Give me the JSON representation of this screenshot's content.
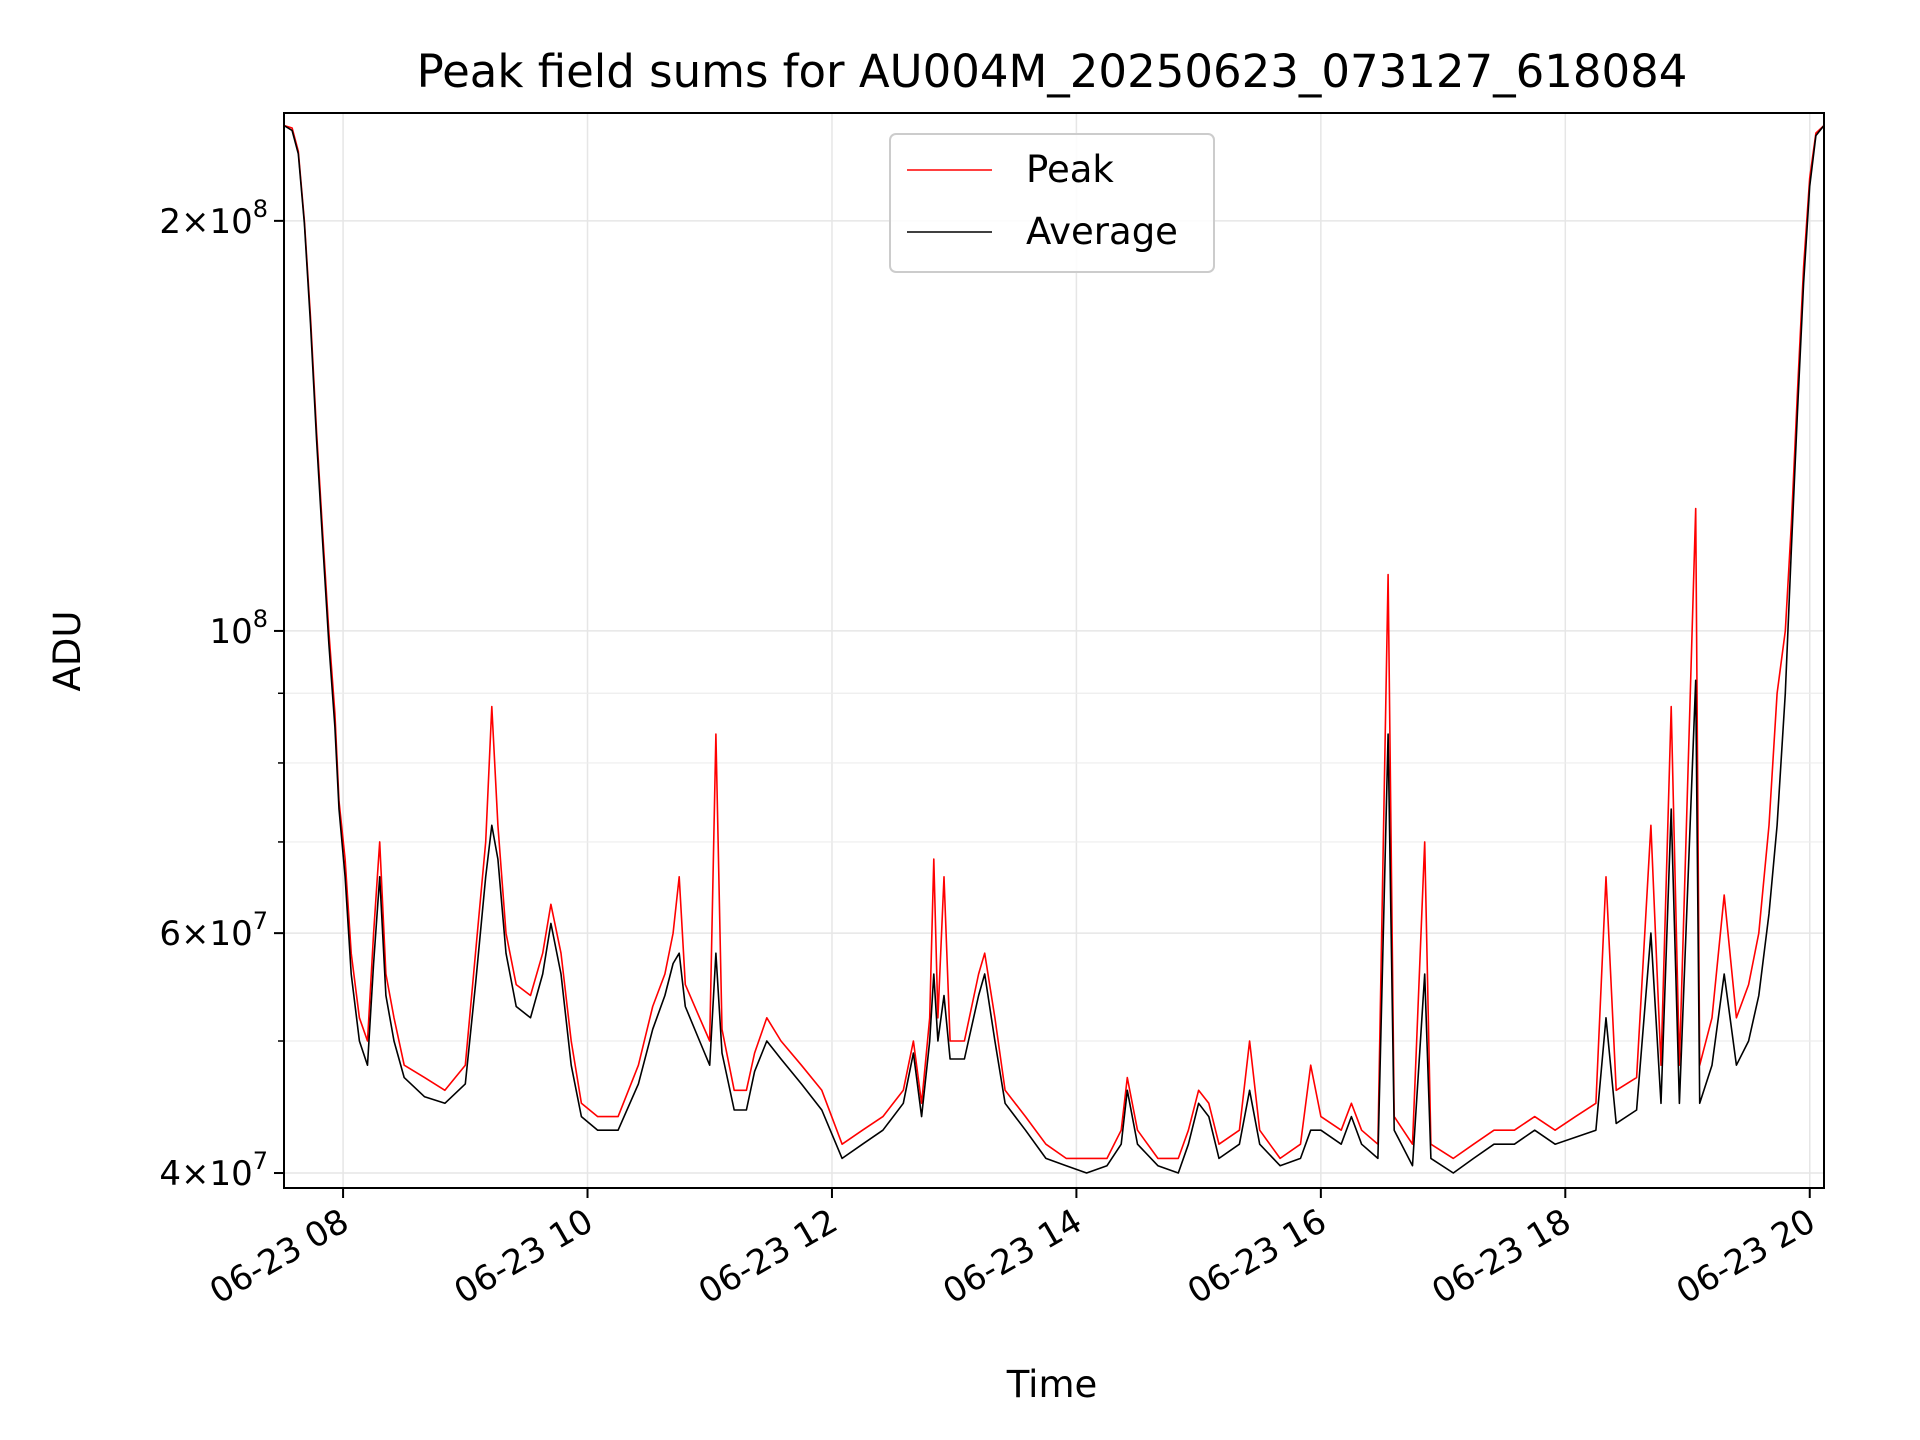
{
  "chart_data": {
    "type": "line",
    "title": "Peak field sums for AU004M_20250623_073127_618084",
    "xlabel": "Time",
    "ylabel": "ADU",
    "xlim": [
      "06-23 07:31",
      "06-23 20:07"
    ],
    "ylim": [
      39000000,
      240000000
    ],
    "yscale": "log",
    "grid": true,
    "legend_position": "upper center",
    "x_ticks": [
      "06-23 08",
      "06-23 10",
      "06-23 12",
      "06-23 14",
      "06-23 16",
      "06-23 18",
      "06-23 20"
    ],
    "y_tick_labels": [
      {
        "value": 40000000,
        "mantissa": "4",
        "base": "10",
        "exp": "7"
      },
      {
        "value": 60000000,
        "mantissa": "6",
        "base": "10",
        "exp": "7"
      },
      {
        "value": 100000000,
        "mantissa": "",
        "base": "10",
        "exp": "8"
      },
      {
        "value": 200000000,
        "mantissa": "2",
        "base": "10",
        "exp": "8"
      }
    ],
    "y_minor_ticks": [
      50000000,
      70000000,
      80000000,
      90000000
    ],
    "series": [
      {
        "name": "Peak",
        "color": "#ff0000",
        "points": [
          [
            "07:31",
            235000000
          ],
          [
            "07:35",
            234000000
          ],
          [
            "07:38",
            225000000
          ],
          [
            "07:41",
            200000000
          ],
          [
            "07:44",
            170000000
          ],
          [
            "07:47",
            140000000
          ],
          [
            "07:50",
            118000000
          ],
          [
            "07:53",
            100000000
          ],
          [
            "07:56",
            87000000
          ],
          [
            "07:58",
            75000000
          ],
          [
            "08:01",
            68000000
          ],
          [
            "08:04",
            58000000
          ],
          [
            "08:08",
            52000000
          ],
          [
            "08:12",
            50000000
          ],
          [
            "08:15",
            60000000
          ],
          [
            "08:18",
            70000000
          ],
          [
            "08:21",
            56000000
          ],
          [
            "08:25",
            52000000
          ],
          [
            "08:30",
            48000000
          ],
          [
            "08:40",
            47000000
          ],
          [
            "08:50",
            46000000
          ],
          [
            "09:00",
            48000000
          ],
          [
            "09:05",
            58000000
          ],
          [
            "09:10",
            70000000
          ],
          [
            "09:13",
            88000000
          ],
          [
            "09:16",
            72000000
          ],
          [
            "09:20",
            60000000
          ],
          [
            "09:25",
            55000000
          ],
          [
            "09:32",
            54000000
          ],
          [
            "09:38",
            58000000
          ],
          [
            "09:42",
            63000000
          ],
          [
            "09:47",
            58000000
          ],
          [
            "09:52",
            50000000
          ],
          [
            "09:57",
            45000000
          ],
          [
            "10:05",
            44000000
          ],
          [
            "10:15",
            44000000
          ],
          [
            "10:25",
            48000000
          ],
          [
            "10:32",
            53000000
          ],
          [
            "10:38",
            56000000
          ],
          [
            "10:42",
            60000000
          ],
          [
            "10:45",
            66000000
          ],
          [
            "10:48",
            55000000
          ],
          [
            "10:55",
            52000000
          ],
          [
            "11:00",
            50000000
          ],
          [
            "11:03",
            84000000
          ],
          [
            "11:06",
            51000000
          ],
          [
            "11:12",
            46000000
          ],
          [
            "11:18",
            46000000
          ],
          [
            "11:22",
            49000000
          ],
          [
            "11:28",
            52000000
          ],
          [
            "11:35",
            50000000
          ],
          [
            "11:45",
            48000000
          ],
          [
            "11:55",
            46000000
          ],
          [
            "12:05",
            42000000
          ],
          [
            "12:15",
            43000000
          ],
          [
            "12:25",
            44000000
          ],
          [
            "12:35",
            46000000
          ],
          [
            "12:40",
            50000000
          ],
          [
            "12:44",
            45000000
          ],
          [
            "12:48",
            52000000
          ],
          [
            "12:50",
            68000000
          ],
          [
            "12:52",
            52000000
          ],
          [
            "12:55",
            66000000
          ],
          [
            "12:58",
            50000000
          ],
          [
            "13:05",
            50000000
          ],
          [
            "13:12",
            56000000
          ],
          [
            "13:15",
            58000000
          ],
          [
            "13:20",
            52000000
          ],
          [
            "13:25",
            46000000
          ],
          [
            "13:35",
            44000000
          ],
          [
            "13:45",
            42000000
          ],
          [
            "13:55",
            41000000
          ],
          [
            "14:05",
            41000000
          ],
          [
            "14:15",
            41000000
          ],
          [
            "14:22",
            43000000
          ],
          [
            "14:25",
            47000000
          ],
          [
            "14:30",
            43000000
          ],
          [
            "14:40",
            41000000
          ],
          [
            "14:50",
            41000000
          ],
          [
            "14:55",
            43000000
          ],
          [
            "15:00",
            46000000
          ],
          [
            "15:05",
            45000000
          ],
          [
            "15:10",
            42000000
          ],
          [
            "15:20",
            43000000
          ],
          [
            "15:25",
            50000000
          ],
          [
            "15:30",
            43000000
          ],
          [
            "15:40",
            41000000
          ],
          [
            "15:50",
            42000000
          ],
          [
            "15:55",
            48000000
          ],
          [
            "16:00",
            44000000
          ],
          [
            "16:10",
            43000000
          ],
          [
            "16:15",
            45000000
          ],
          [
            "16:20",
            43000000
          ],
          [
            "16:28",
            42000000
          ],
          [
            "16:33",
            110000000
          ],
          [
            "16:36",
            44000000
          ],
          [
            "16:45",
            42000000
          ],
          [
            "16:51",
            70000000
          ],
          [
            "16:54",
            42000000
          ],
          [
            "17:05",
            41000000
          ],
          [
            "17:15",
            42000000
          ],
          [
            "17:25",
            43000000
          ],
          [
            "17:35",
            43000000
          ],
          [
            "17:45",
            44000000
          ],
          [
            "17:55",
            43000000
          ],
          [
            "18:05",
            44000000
          ],
          [
            "18:15",
            45000000
          ],
          [
            "18:20",
            66000000
          ],
          [
            "18:25",
            46000000
          ],
          [
            "18:35",
            47000000
          ],
          [
            "18:42",
            72000000
          ],
          [
            "18:47",
            48000000
          ],
          [
            "18:52",
            88000000
          ],
          [
            "18:56",
            48000000
          ],
          [
            "19:04",
            123000000
          ],
          [
            "19:06",
            48000000
          ],
          [
            "19:12",
            52000000
          ],
          [
            "19:18",
            64000000
          ],
          [
            "19:24",
            52000000
          ],
          [
            "19:30",
            55000000
          ],
          [
            "19:35",
            60000000
          ],
          [
            "19:40",
            72000000
          ],
          [
            "19:44",
            90000000
          ],
          [
            "19:48",
            100000000
          ],
          [
            "19:51",
            120000000
          ],
          [
            "19:54",
            150000000
          ],
          [
            "19:57",
            185000000
          ],
          [
            "20:00",
            215000000
          ],
          [
            "20:03",
            232000000
          ],
          [
            "20:07",
            235000000
          ]
        ]
      },
      {
        "name": "Average",
        "color": "#000000",
        "points": [
          [
            "07:31",
            235000000
          ],
          [
            "07:35",
            233000000
          ],
          [
            "07:38",
            224000000
          ],
          [
            "07:41",
            199000000
          ],
          [
            "07:44",
            168000000
          ],
          [
            "07:47",
            138000000
          ],
          [
            "07:50",
            116000000
          ],
          [
            "07:53",
            98000000
          ],
          [
            "07:56",
            85000000
          ],
          [
            "07:58",
            74000000
          ],
          [
            "08:01",
            66000000
          ],
          [
            "08:04",
            56000000
          ],
          [
            "08:08",
            50000000
          ],
          [
            "08:12",
            48000000
          ],
          [
            "08:15",
            57000000
          ],
          [
            "08:18",
            66000000
          ],
          [
            "08:21",
            54000000
          ],
          [
            "08:25",
            50000000
          ],
          [
            "08:30",
            47000000
          ],
          [
            "08:40",
            45500000
          ],
          [
            "08:50",
            45000000
          ],
          [
            "09:00",
            46500000
          ],
          [
            "09:05",
            55000000
          ],
          [
            "09:10",
            66000000
          ],
          [
            "09:13",
            72000000
          ],
          [
            "09:16",
            68000000
          ],
          [
            "09:20",
            58000000
          ],
          [
            "09:25",
            53000000
          ],
          [
            "09:32",
            52000000
          ],
          [
            "09:38",
            56000000
          ],
          [
            "09:42",
            61000000
          ],
          [
            "09:47",
            56000000
          ],
          [
            "09:52",
            48000000
          ],
          [
            "09:57",
            44000000
          ],
          [
            "10:05",
            43000000
          ],
          [
            "10:15",
            43000000
          ],
          [
            "10:25",
            46500000
          ],
          [
            "10:32",
            51000000
          ],
          [
            "10:38",
            54000000
          ],
          [
            "10:42",
            57000000
          ],
          [
            "10:45",
            58000000
          ],
          [
            "10:48",
            53000000
          ],
          [
            "10:55",
            50000000
          ],
          [
            "11:00",
            48000000
          ],
          [
            "11:03",
            58000000
          ],
          [
            "11:06",
            49000000
          ],
          [
            "11:12",
            44500000
          ],
          [
            "11:18",
            44500000
          ],
          [
            "11:22",
            47500000
          ],
          [
            "11:28",
            50000000
          ],
          [
            "11:35",
            48500000
          ],
          [
            "11:45",
            46500000
          ],
          [
            "11:55",
            44500000
          ],
          [
            "12:05",
            41000000
          ],
          [
            "12:15",
            42000000
          ],
          [
            "12:25",
            43000000
          ],
          [
            "12:35",
            45000000
          ],
          [
            "12:40",
            49000000
          ],
          [
            "12:44",
            44000000
          ],
          [
            "12:48",
            50000000
          ],
          [
            "12:50",
            56000000
          ],
          [
            "12:52",
            50000000
          ],
          [
            "12:55",
            54000000
          ],
          [
            "12:58",
            48500000
          ],
          [
            "13:05",
            48500000
          ],
          [
            "13:12",
            54000000
          ],
          [
            "13:15",
            56000000
          ],
          [
            "13:20",
            50000000
          ],
          [
            "13:25",
            45000000
          ],
          [
            "13:35",
            43000000
          ],
          [
            "13:45",
            41000000
          ],
          [
            "13:55",
            40500000
          ],
          [
            "14:05",
            40000000
          ],
          [
            "14:15",
            40500000
          ],
          [
            "14:22",
            42000000
          ],
          [
            "14:25",
            46000000
          ],
          [
            "14:30",
            42000000
          ],
          [
            "14:40",
            40500000
          ],
          [
            "14:50",
            40000000
          ],
          [
            "14:55",
            42000000
          ],
          [
            "15:00",
            45000000
          ],
          [
            "15:05",
            44000000
          ],
          [
            "15:10",
            41000000
          ],
          [
            "15:20",
            42000000
          ],
          [
            "15:25",
            46000000
          ],
          [
            "15:30",
            42000000
          ],
          [
            "15:40",
            40500000
          ],
          [
            "15:50",
            41000000
          ],
          [
            "15:55",
            43000000
          ],
          [
            "16:00",
            43000000
          ],
          [
            "16:10",
            42000000
          ],
          [
            "16:15",
            44000000
          ],
          [
            "16:20",
            42000000
          ],
          [
            "16:28",
            41000000
          ],
          [
            "16:33",
            84000000
          ],
          [
            "16:36",
            43000000
          ],
          [
            "16:45",
            40500000
          ],
          [
            "16:51",
            56000000
          ],
          [
            "16:54",
            41000000
          ],
          [
            "17:05",
            40000000
          ],
          [
            "17:15",
            41000000
          ],
          [
            "17:25",
            42000000
          ],
          [
            "17:35",
            42000000
          ],
          [
            "17:45",
            43000000
          ],
          [
            "17:55",
            42000000
          ],
          [
            "18:05",
            42500000
          ],
          [
            "18:15",
            43000000
          ],
          [
            "18:20",
            52000000
          ],
          [
            "18:25",
            43500000
          ],
          [
            "18:35",
            44500000
          ],
          [
            "18:42",
            60000000
          ],
          [
            "18:47",
            45000000
          ],
          [
            "18:52",
            74000000
          ],
          [
            "18:56",
            45000000
          ],
          [
            "19:04",
            92000000
          ],
          [
            "19:06",
            45000000
          ],
          [
            "19:12",
            48000000
          ],
          [
            "19:18",
            56000000
          ],
          [
            "19:24",
            48000000
          ],
          [
            "19:30",
            50000000
          ],
          [
            "19:35",
            54000000
          ],
          [
            "19:40",
            62000000
          ],
          [
            "19:44",
            72000000
          ],
          [
            "19:48",
            90000000
          ],
          [
            "19:51",
            115000000
          ],
          [
            "19:54",
            145000000
          ],
          [
            "19:57",
            180000000
          ],
          [
            "20:00",
            212000000
          ],
          [
            "20:03",
            231000000
          ],
          [
            "20:07",
            235000000
          ]
        ]
      }
    ]
  }
}
